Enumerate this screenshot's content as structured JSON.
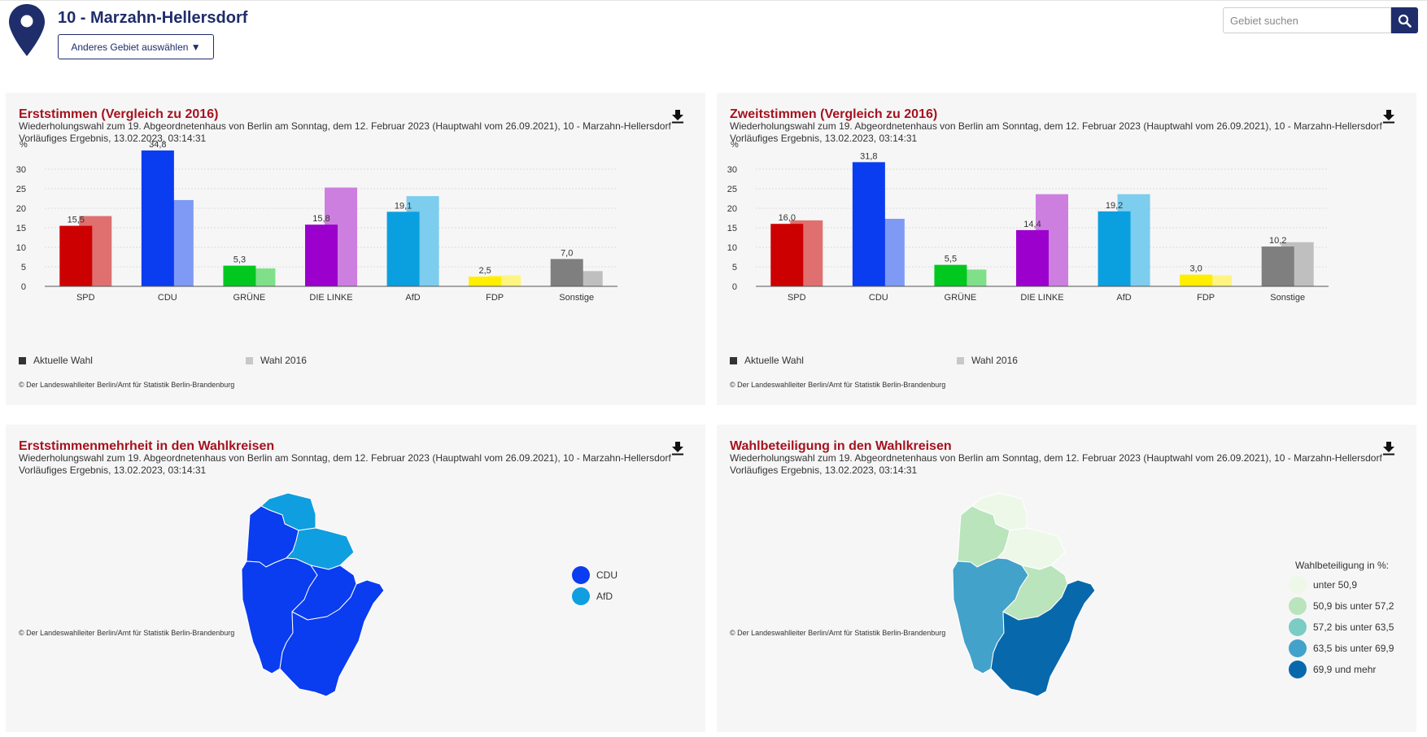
{
  "header": {
    "title": "10 - Marzahn-Hellersdorf",
    "select_label": "Anderes Gebiet auswählen ▼",
    "search_placeholder": "Gebiet suchen"
  },
  "colors": {
    "navy": "#1f2d6b",
    "title_red": "#a5121f",
    "panel_bg": "#f6f6f6"
  },
  "panels": {
    "erst": {
      "title": "Erststimmen (Vergleich zu 2016)",
      "subtitle": "Wiederholungswahl zum 19. Abgeordnetenhaus von Berlin am Sonntag, dem 12. Februar 2023 (Hauptwahl vom 26.09.2021), 10 - Marzahn-Hellersdorf",
      "status": "Vorläufiges Ergebnis, 13.02.2023, 03:14:31",
      "legend_current": "Aktuelle Wahl",
      "legend_2016": "Wahl 2016",
      "copyright": "© Der Landeswahlleiter Berlin/Amt für Statistik Berlin-Brandenburg"
    },
    "zweit": {
      "title": "Zweitstimmen (Vergleich zu 2016)",
      "subtitle": "Wiederholungswahl zum 19. Abgeordnetenhaus von Berlin am Sonntag, dem 12. Februar 2023 (Hauptwahl vom 26.09.2021), 10 - Marzahn-Hellersdorf",
      "status": "Vorläufiges Ergebnis, 13.02.2023, 03:14:31",
      "legend_current": "Aktuelle Wahl",
      "legend_2016": "Wahl 2016",
      "copyright": "© Der Landeswahlleiter Berlin/Amt für Statistik Berlin-Brandenburg"
    },
    "mehrheit": {
      "title": "Erststimmenmehrheit in den Wahlkreisen",
      "subtitle": "Wiederholungswahl zum 19. Abgeordnetenhaus von Berlin am Sonntag, dem 12. Februar 2023 (Hauptwahl vom 26.09.2021), 10 - Marzahn-Hellersdorf",
      "status": "Vorläufiges Ergebnis, 13.02.2023, 03:14:31",
      "copyright": "© Der Landeswahlleiter Berlin/Amt für Statistik Berlin-Brandenburg",
      "legend": [
        {
          "label": "CDU",
          "color": "#0a3cf0"
        },
        {
          "label": "AfD",
          "color": "#0f9ee0"
        }
      ]
    },
    "beteiligung": {
      "title": "Wahlbeteiligung in den Wahlkreisen",
      "subtitle": "Wiederholungswahl zum 19. Abgeordnetenhaus von Berlin am Sonntag, dem 12. Februar 2023 (Hauptwahl vom 26.09.2021), 10 - Marzahn-Hellersdorf",
      "status": "Vorläufiges Ergebnis, 13.02.2023, 03:14:31",
      "copyright": "© Der Landeswahlleiter Berlin/Amt für Statistik Berlin-Brandenburg",
      "legend_title": "Wahlbeteiligung in %:",
      "legend": [
        {
          "label": "unter 50,9",
          "color": "#edf8e9"
        },
        {
          "label": "50,9 bis unter 57,2",
          "color": "#bae4bc"
        },
        {
          "label": "57,2 bis unter 63,5",
          "color": "#7bccc4"
        },
        {
          "label": "63,5 bis unter 69,9",
          "color": "#43a2ca"
        },
        {
          "label": "69,9 und mehr",
          "color": "#0868ac"
        }
      ]
    }
  },
  "chart_data": [
    {
      "type": "bar",
      "title": "Erststimmen (Vergleich zu 2016)",
      "ylabel": "%",
      "ylim": [
        0,
        35
      ],
      "yticks": [
        0,
        5,
        10,
        15,
        20,
        25,
        30
      ],
      "grid": true,
      "categories": [
        "SPD",
        "CDU",
        "GRÜNE",
        "DIE LINKE",
        "AfD",
        "FDP",
        "Sonstige"
      ],
      "colors_current": [
        "#cc0000",
        "#0a3cf0",
        "#00c81e",
        "#9b00cc",
        "#0aa0e0",
        "#ffee00",
        "#7f7f7f"
      ],
      "colors_2016": [
        "#e07070",
        "#7f9af5",
        "#80e08a",
        "#cd7fe0",
        "#7ccdee",
        "#fff480",
        "#bfbfbf"
      ],
      "series": [
        {
          "name": "Aktuelle Wahl",
          "values": [
            15.5,
            34.8,
            5.3,
            15.8,
            19.1,
            2.5,
            7.0
          ],
          "labels": [
            "15,5",
            "34,8",
            "5,3",
            "15,8",
            "19,1",
            "2,5",
            "7,0"
          ]
        },
        {
          "name": "Wahl 2016",
          "values": [
            18.0,
            22.1,
            4.6,
            25.3,
            23.1,
            2.8,
            3.9
          ]
        }
      ]
    },
    {
      "type": "bar",
      "title": "Zweitstimmen (Vergleich zu 2016)",
      "ylabel": "%",
      "ylim": [
        0,
        35
      ],
      "yticks": [
        0,
        5,
        10,
        15,
        20,
        25,
        30
      ],
      "grid": true,
      "categories": [
        "SPD",
        "CDU",
        "GRÜNE",
        "DIE LINKE",
        "AfD",
        "FDP",
        "Sonstige"
      ],
      "colors_current": [
        "#cc0000",
        "#0a3cf0",
        "#00c81e",
        "#9b00cc",
        "#0aa0e0",
        "#ffee00",
        "#7f7f7f"
      ],
      "colors_2016": [
        "#e07070",
        "#7f9af5",
        "#80e08a",
        "#cd7fe0",
        "#7ccdee",
        "#fff480",
        "#bfbfbf"
      ],
      "series": [
        {
          "name": "Aktuelle Wahl",
          "values": [
            16.0,
            31.8,
            5.5,
            14.4,
            19.2,
            3.0,
            10.2
          ],
          "labels": [
            "16,0",
            "31,8",
            "5,5",
            "14,4",
            "19,2",
            "3,0",
            "10,2"
          ]
        },
        {
          "name": "Wahl 2016",
          "values": [
            16.9,
            17.3,
            4.3,
            23.6,
            23.6,
            2.8,
            11.3
          ]
        }
      ]
    }
  ]
}
